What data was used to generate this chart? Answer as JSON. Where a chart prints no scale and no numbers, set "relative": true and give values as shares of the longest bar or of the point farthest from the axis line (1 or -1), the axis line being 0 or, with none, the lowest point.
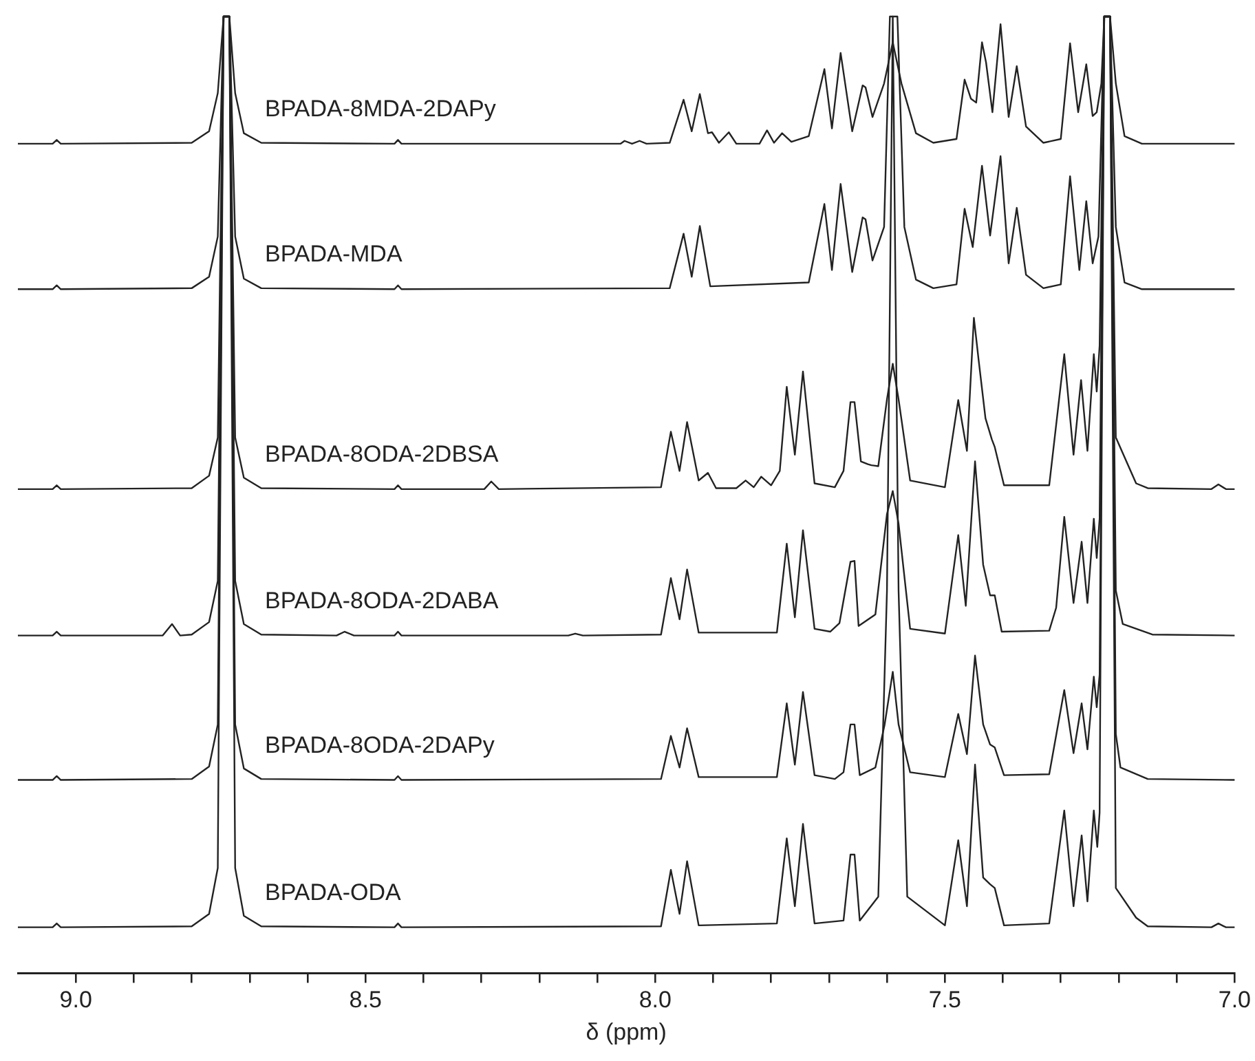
{
  "chart_data": {
    "type": "line",
    "relative": true,
    "xlabel": "δ (ppm)",
    "xlim": [
      9.1,
      7.0
    ],
    "xticks": [
      {
        "value": 9.0,
        "label": "9.0"
      },
      {
        "value": 8.9,
        "label": null
      },
      {
        "value": 8.8,
        "label": null
      },
      {
        "value": 8.7,
        "label": null
      },
      {
        "value": 8.6,
        "label": null
      },
      8.5,
      {
        "value": 8.4,
        "label": null
      },
      {
        "value": 8.3,
        "label": null
      },
      {
        "value": 8.2,
        "label": null
      },
      {
        "value": 8.1,
        "label": null
      },
      {
        "value": 8.0,
        "label": "8.0"
      },
      {
        "value": 7.9,
        "label": null
      },
      {
        "value": 7.8,
        "label": null
      },
      {
        "value": 7.7,
        "label": null
      },
      {
        "value": 7.6,
        "label": null
      },
      7.5,
      {
        "value": 7.4,
        "label": null
      },
      {
        "value": 7.3,
        "label": null
      },
      {
        "value": 7.2,
        "label": null
      },
      {
        "value": 7.1,
        "label": null
      },
      {
        "value": 7.0,
        "label": "7.0"
      }
    ],
    "series": [
      {
        "name": "BPADA-8MDA-2DAPy",
        "color": "#222222",
        "x": [
          9.1,
          9.04,
          9.033,
          9.026,
          8.8,
          8.77,
          8.755,
          8.745,
          8.735,
          8.725,
          8.71,
          8.68,
          8.45,
          8.444,
          8.438,
          8.06,
          8.053,
          8.04,
          8.027,
          8.015,
          7.975,
          7.951,
          7.937,
          7.923,
          7.909,
          7.902,
          7.89,
          7.873,
          7.86,
          7.82,
          7.807,
          7.795,
          7.781,
          7.765,
          7.735,
          7.708,
          7.695,
          7.68,
          7.66,
          7.642,
          7.637,
          7.625,
          7.605,
          7.59,
          7.575,
          7.55,
          7.52,
          7.48,
          7.466,
          7.455,
          7.446,
          7.436,
          7.429,
          7.418,
          7.404,
          7.39,
          7.376,
          7.36,
          7.33,
          7.3,
          7.284,
          7.27,
          7.256,
          7.245,
          7.238,
          7.23,
          7.225,
          7.215,
          7.205,
          7.19,
          7.16,
          7.0
        ],
        "values": [
          0.867,
          0.867,
          0.871,
          0.867,
          0.868,
          0.88,
          0.92,
          1,
          1,
          0.92,
          0.878,
          0.868,
          0.867,
          0.871,
          0.867,
          0.867,
          0.87,
          0.867,
          0.87,
          0.867,
          0.868,
          0.913,
          0.88,
          0.919,
          0.878,
          0.879,
          0.868,
          0.879,
          0.867,
          0.867,
          0.881,
          0.868,
          0.878,
          0.869,
          0.875,
          0.945,
          0.883,
          0.962,
          0.88,
          0.928,
          0.926,
          0.895,
          0.93,
          0.973,
          0.93,
          0.878,
          0.868,
          0.872,
          0.934,
          0.914,
          0.91,
          0.973,
          0.952,
          0.9,
          0.992,
          0.895,
          0.948,
          0.885,
          0.868,
          0.872,
          0.972,
          0.9,
          0.95,
          0.896,
          0.9,
          0.93,
          1,
          1,
          0.93,
          0.875,
          0.867,
          0.867
        ]
      },
      {
        "name": "BPADA-MDA",
        "color": "#222222",
        "x": [
          9.1,
          9.04,
          9.033,
          9.026,
          8.8,
          8.77,
          8.755,
          8.745,
          8.735,
          8.725,
          8.71,
          8.68,
          8.45,
          8.444,
          8.438,
          7.975,
          7.951,
          7.937,
          7.923,
          7.905,
          7.735,
          7.708,
          7.695,
          7.68,
          7.66,
          7.642,
          7.637,
          7.625,
          7.605,
          7.595,
          7.582,
          7.57,
          7.55,
          7.52,
          7.48,
          7.466,
          7.452,
          7.436,
          7.422,
          7.404,
          7.39,
          7.376,
          7.36,
          7.33,
          7.3,
          7.284,
          7.268,
          7.256,
          7.245,
          7.235,
          7.225,
          7.215,
          7.205,
          7.19,
          7.16,
          7.0
        ],
        "values": [
          0.715,
          0.715,
          0.719,
          0.715,
          0.716,
          0.728,
          0.77,
          1,
          1,
          0.77,
          0.726,
          0.716,
          0.715,
          0.719,
          0.715,
          0.716,
          0.773,
          0.728,
          0.781,
          0.718,
          0.722,
          0.804,
          0.735,
          0.825,
          0.733,
          0.79,
          0.788,
          0.745,
          0.78,
          1,
          1,
          0.78,
          0.725,
          0.716,
          0.72,
          0.799,
          0.759,
          0.844,
          0.771,
          0.854,
          0.742,
          0.8,
          0.73,
          0.716,
          0.72,
          0.833,
          0.735,
          0.807,
          0.742,
          0.77,
          1,
          1,
          0.78,
          0.722,
          0.715,
          0.715
        ]
      },
      {
        "name": "BPADA-8ODA-2DBSA",
        "color": "#222222",
        "x": [
          9.1,
          9.04,
          9.033,
          9.026,
          8.8,
          8.77,
          8.755,
          8.745,
          8.735,
          8.725,
          8.71,
          8.68,
          8.45,
          8.444,
          8.438,
          8.295,
          8.283,
          8.27,
          7.99,
          7.973,
          7.958,
          7.945,
          7.925,
          7.909,
          7.895,
          7.86,
          7.844,
          7.83,
          7.817,
          7.8,
          7.785,
          7.773,
          7.759,
          7.745,
          7.725,
          7.69,
          7.675,
          7.663,
          7.656,
          7.645,
          7.633,
          7.627,
          7.615,
          7.6,
          7.59,
          7.58,
          7.56,
          7.5,
          7.477,
          7.462,
          7.45,
          7.442,
          7.43,
          7.419,
          7.414,
          7.398,
          7.32,
          7.294,
          7.278,
          7.265,
          7.254,
          7.243,
          7.238,
          7.233,
          7.225,
          7.215,
          7.205,
          7.17,
          7.15,
          7.04,
          7.028,
          7.015,
          7.0
        ],
        "values": [
          0.506,
          0.506,
          0.51,
          0.506,
          0.507,
          0.52,
          0.56,
          1,
          1,
          0.56,
          0.518,
          0.507,
          0.506,
          0.51,
          0.506,
          0.506,
          0.514,
          0.506,
          0.508,
          0.566,
          0.525,
          0.576,
          0.515,
          0.523,
          0.507,
          0.507,
          0.515,
          0.508,
          0.519,
          0.51,
          0.525,
          0.613,
          0.542,
          0.629,
          0.512,
          0.508,
          0.525,
          0.597,
          0.597,
          0.535,
          0.532,
          0.531,
          0.53,
          0.6,
          0.637,
          0.6,
          0.515,
          0.508,
          0.599,
          0.546,
          0.685,
          0.642,
          0.58,
          0.558,
          0.55,
          0.51,
          0.51,
          0.647,
          0.542,
          0.62,
          0.546,
          0.647,
          0.608,
          0.656,
          1,
          1,
          0.56,
          0.512,
          0.507,
          0.506,
          0.511,
          0.506,
          0.506
        ]
      },
      {
        "name": "BPADA-8ODA-2DABA",
        "color": "#222222",
        "x": [
          9.1,
          9.04,
          9.033,
          9.026,
          8.85,
          8.834,
          8.82,
          8.8,
          8.77,
          8.755,
          8.745,
          8.735,
          8.725,
          8.71,
          8.68,
          8.55,
          8.536,
          8.52,
          8.45,
          8.444,
          8.438,
          8.15,
          8.138,
          8.125,
          7.99,
          7.973,
          7.958,
          7.945,
          7.925,
          7.79,
          7.773,
          7.759,
          7.745,
          7.725,
          7.698,
          7.682,
          7.663,
          7.656,
          7.649,
          7.62,
          7.6,
          7.59,
          7.58,
          7.56,
          7.5,
          7.477,
          7.464,
          7.448,
          7.434,
          7.422,
          7.414,
          7.402,
          7.32,
          7.308,
          7.294,
          7.278,
          7.264,
          7.254,
          7.243,
          7.238,
          7.233,
          7.225,
          7.215,
          7.205,
          7.193,
          7.142,
          7.0
        ],
        "values": [
          0.353,
          0.353,
          0.357,
          0.353,
          0.353,
          0.365,
          0.353,
          0.354,
          0.367,
          0.41,
          1,
          1,
          0.41,
          0.365,
          0.354,
          0.353,
          0.357,
          0.353,
          0.353,
          0.357,
          0.353,
          0.353,
          0.355,
          0.353,
          0.354,
          0.413,
          0.37,
          0.422,
          0.356,
          0.356,
          0.449,
          0.372,
          0.463,
          0.36,
          0.357,
          0.366,
          0.43,
          0.431,
          0.363,
          0.375,
          0.48,
          0.504,
          0.47,
          0.36,
          0.355,
          0.458,
          0.384,
          0.535,
          0.427,
          0.395,
          0.395,
          0.357,
          0.358,
          0.382,
          0.477,
          0.387,
          0.451,
          0.387,
          0.475,
          0.434,
          0.475,
          1,
          1,
          0.4,
          0.365,
          0.354,
          0.353
        ]
      },
      {
        "name": "BPADA-8ODA-2DAPy",
        "color": "#222222",
        "x": [
          9.1,
          9.04,
          9.033,
          9.026,
          8.8,
          8.77,
          8.755,
          8.745,
          8.735,
          8.725,
          8.71,
          8.68,
          8.45,
          8.444,
          8.438,
          7.99,
          7.973,
          7.958,
          7.945,
          7.925,
          7.79,
          7.773,
          7.759,
          7.745,
          7.725,
          7.69,
          7.675,
          7.663,
          7.656,
          7.647,
          7.62,
          7.604,
          7.59,
          7.58,
          7.56,
          7.5,
          7.477,
          7.462,
          7.448,
          7.434,
          7.422,
          7.414,
          7.398,
          7.32,
          7.294,
          7.278,
          7.264,
          7.254,
          7.243,
          7.238,
          7.233,
          7.225,
          7.215,
          7.205,
          7.197,
          7.15,
          7.0
        ],
        "values": [
          0.202,
          0.202,
          0.206,
          0.202,
          0.203,
          0.216,
          0.26,
          1,
          1,
          0.26,
          0.214,
          0.203,
          0.202,
          0.206,
          0.202,
          0.203,
          0.248,
          0.215,
          0.256,
          0.205,
          0.205,
          0.282,
          0.218,
          0.294,
          0.207,
          0.203,
          0.21,
          0.26,
          0.26,
          0.207,
          0.215,
          0.26,
          0.315,
          0.26,
          0.21,
          0.205,
          0.271,
          0.229,
          0.332,
          0.26,
          0.239,
          0.236,
          0.207,
          0.208,
          0.296,
          0.23,
          0.282,
          0.234,
          0.31,
          0.278,
          0.312,
          1,
          1,
          0.25,
          0.215,
          0.203,
          0.202
        ]
      },
      {
        "name": "BPADA-ODA",
        "color": "#222222",
        "x": [
          9.1,
          9.04,
          9.033,
          9.026,
          8.8,
          8.77,
          8.755,
          8.745,
          8.735,
          8.725,
          8.71,
          8.68,
          8.45,
          8.444,
          8.438,
          7.99,
          7.973,
          7.958,
          7.945,
          7.925,
          7.79,
          7.773,
          7.759,
          7.745,
          7.725,
          7.675,
          7.663,
          7.656,
          7.647,
          7.615,
          7.6,
          7.59,
          7.58,
          7.565,
          7.5,
          7.477,
          7.462,
          7.448,
          7.434,
          7.422,
          7.414,
          7.398,
          7.32,
          7.294,
          7.278,
          7.264,
          7.254,
          7.243,
          7.237,
          7.233,
          7.225,
          7.215,
          7.205,
          7.17,
          7.15,
          7.04,
          7.028,
          7.015,
          7.0
        ],
        "values": [
          0.048,
          0.048,
          0.052,
          0.048,
          0.049,
          0.062,
          0.11,
          1,
          1,
          0.11,
          0.06,
          0.049,
          0.048,
          0.052,
          0.048,
          0.049,
          0.108,
          0.062,
          0.117,
          0.05,
          0.052,
          0.141,
          0.07,
          0.156,
          0.052,
          0.055,
          0.124,
          0.124,
          0.055,
          0.08,
          0.4,
          1,
          0.4,
          0.08,
          0.05,
          0.139,
          0.07,
          0.218,
          0.1,
          0.093,
          0.089,
          0.05,
          0.052,
          0.17,
          0.07,
          0.144,
          0.075,
          0.17,
          0.132,
          0.168,
          1,
          1,
          0.089,
          0.058,
          0.049,
          0.048,
          0.052,
          0.048,
          0.048
        ]
      }
    ]
  }
}
